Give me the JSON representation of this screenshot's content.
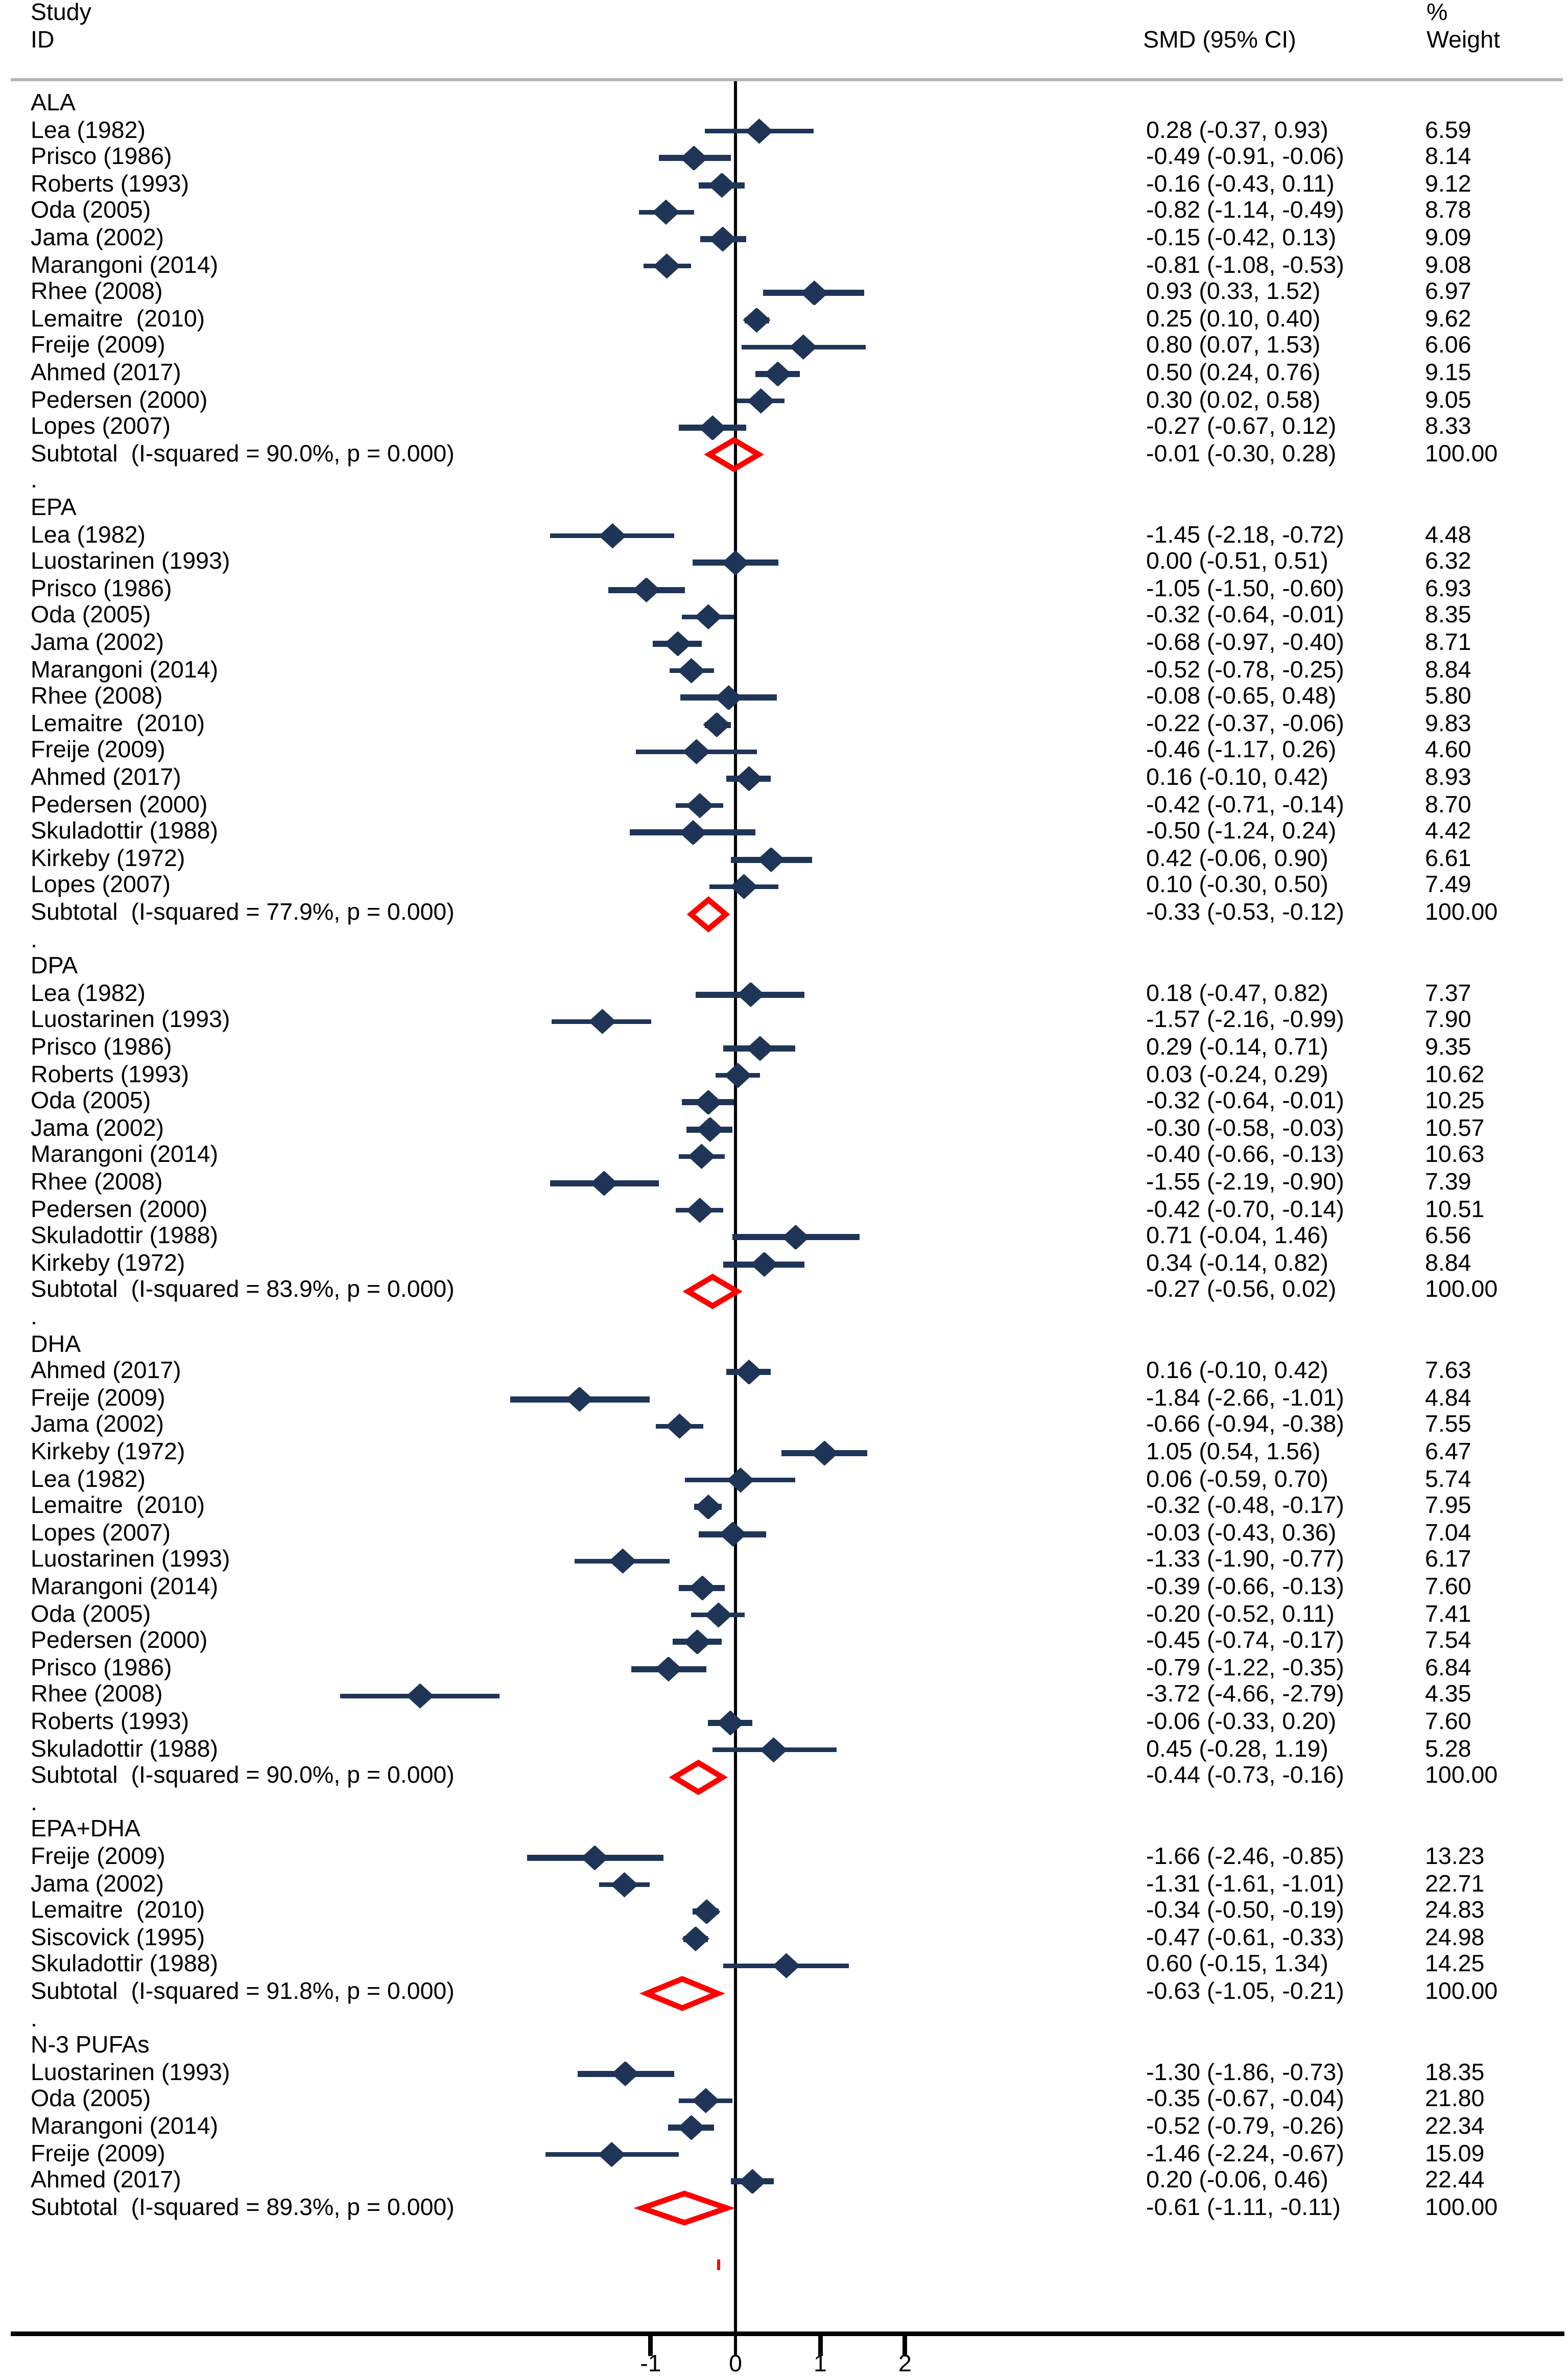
{
  "header": {
    "study_col_line1": "Study",
    "study_col_line2": "ID",
    "smd_col": "SMD (95% CI)",
    "weight_col_line1": "%",
    "weight_col_line2": "Weight"
  },
  "separator_dot": ".",
  "colors": {
    "marker_navy": "#1f3557",
    "subtotal_red": "#fe0000",
    "axis_black": "#000000",
    "header_rule_gray": "#b5b5b5",
    "text": "#000000"
  },
  "axis": {
    "tick_labels": [
      "-1",
      "0",
      "1",
      "2"
    ],
    "tick_values": [
      -1,
      0,
      1,
      2
    ]
  },
  "chart_data": {
    "type": "forest",
    "effect_measure": "SMD",
    "xlim": [
      -4.9,
      2.6
    ],
    "x_ticks": [
      -1,
      0,
      1,
      2
    ],
    "grid": false,
    "null_line": 0,
    "groups": [
      {
        "name": "ALA",
        "dot_after": true,
        "studies": [
          {
            "label": "Lea (1982)",
            "smd": 0.28,
            "lo": -0.37,
            "hi": 0.93,
            "smd_text": "0.28 (-0.37, 0.93)",
            "weight": "6.59"
          },
          {
            "label": "Prisco (1986)",
            "smd": -0.49,
            "lo": -0.91,
            "hi": -0.06,
            "smd_text": "-0.49 (-0.91, -0.06)",
            "weight": "8.14"
          },
          {
            "label": "Roberts (1993)",
            "smd": -0.16,
            "lo": -0.43,
            "hi": 0.11,
            "smd_text": "-0.16 (-0.43, 0.11)",
            "weight": "9.12"
          },
          {
            "label": "Oda (2005)",
            "smd": -0.82,
            "lo": -1.14,
            "hi": -0.49,
            "smd_text": "-0.82 (-1.14, -0.49)",
            "weight": "8.78"
          },
          {
            "label": "Jama (2002)",
            "smd": -0.15,
            "lo": -0.42,
            "hi": 0.13,
            "smd_text": "-0.15 (-0.42, 0.13)",
            "weight": "9.09"
          },
          {
            "label": "Marangoni (2014)",
            "smd": -0.81,
            "lo": -1.08,
            "hi": -0.53,
            "smd_text": "-0.81 (-1.08, -0.53)",
            "weight": "9.08"
          },
          {
            "label": "Rhee (2008)",
            "smd": 0.93,
            "lo": 0.33,
            "hi": 1.52,
            "smd_text": "0.93 (0.33, 1.52)",
            "weight": "6.97"
          },
          {
            "label": "Lemaitre  (2010)",
            "smd": 0.25,
            "lo": 0.1,
            "hi": 0.4,
            "smd_text": "0.25 (0.10, 0.40)",
            "weight": "9.62"
          },
          {
            "label": "Freije (2009)",
            "smd": 0.8,
            "lo": 0.07,
            "hi": 1.53,
            "smd_text": "0.80 (0.07, 1.53)",
            "weight": "6.06"
          },
          {
            "label": "Ahmed (2017)",
            "smd": 0.5,
            "lo": 0.24,
            "hi": 0.76,
            "smd_text": "0.50 (0.24, 0.76)",
            "weight": "9.15"
          },
          {
            "label": "Pedersen (2000)",
            "smd": 0.3,
            "lo": 0.02,
            "hi": 0.58,
            "smd_text": "0.30 (0.02, 0.58)",
            "weight": "9.05"
          },
          {
            "label": "Lopes (2007)",
            "smd": -0.27,
            "lo": -0.67,
            "hi": 0.12,
            "smd_text": "-0.27 (-0.67, 0.12)",
            "weight": "8.33"
          }
        ],
        "subtotal": {
          "label": "Subtotal  (I-squared = 90.0%, p = 0.000)",
          "smd": -0.01,
          "lo": -0.3,
          "hi": 0.28,
          "smd_text": "-0.01 (-0.30, 0.28)",
          "weight": "100.00"
        }
      },
      {
        "name": "EPA",
        "dot_after": true,
        "studies": [
          {
            "label": "Lea (1982)",
            "smd": -1.45,
            "lo": -2.18,
            "hi": -0.72,
            "smd_text": "-1.45 (-2.18, -0.72)",
            "weight": "4.48"
          },
          {
            "label": "Luostarinen (1993)",
            "smd": 0.0,
            "lo": -0.51,
            "hi": 0.51,
            "smd_text": "0.00 (-0.51, 0.51)",
            "weight": "6.32"
          },
          {
            "label": "Prisco (1986)",
            "smd": -1.05,
            "lo": -1.5,
            "hi": -0.6,
            "smd_text": "-1.05 (-1.50, -0.60)",
            "weight": "6.93"
          },
          {
            "label": "Oda (2005)",
            "smd": -0.32,
            "lo": -0.64,
            "hi": -0.01,
            "smd_text": "-0.32 (-0.64, -0.01)",
            "weight": "8.35"
          },
          {
            "label": "Jama (2002)",
            "smd": -0.68,
            "lo": -0.97,
            "hi": -0.4,
            "smd_text": "-0.68 (-0.97, -0.40)",
            "weight": "8.71"
          },
          {
            "label": "Marangoni (2014)",
            "smd": -0.52,
            "lo": -0.78,
            "hi": -0.25,
            "smd_text": "-0.52 (-0.78, -0.25)",
            "weight": "8.84"
          },
          {
            "label": "Rhee (2008)",
            "smd": -0.08,
            "lo": -0.65,
            "hi": 0.48,
            "smd_text": "-0.08 (-0.65, 0.48)",
            "weight": "5.80"
          },
          {
            "label": "Lemaitre  (2010)",
            "smd": -0.22,
            "lo": -0.37,
            "hi": -0.06,
            "smd_text": "-0.22 (-0.37, -0.06)",
            "weight": "9.83"
          },
          {
            "label": "Freije (2009)",
            "smd": -0.46,
            "lo": -1.17,
            "hi": 0.26,
            "smd_text": "-0.46 (-1.17, 0.26)",
            "weight": "4.60"
          },
          {
            "label": "Ahmed (2017)",
            "smd": 0.16,
            "lo": -0.1,
            "hi": 0.42,
            "smd_text": "0.16 (-0.10, 0.42)",
            "weight": "8.93"
          },
          {
            "label": "Pedersen (2000)",
            "smd": -0.42,
            "lo": -0.71,
            "hi": -0.14,
            "smd_text": "-0.42 (-0.71, -0.14)",
            "weight": "8.70"
          },
          {
            "label": "Skuladottir (1988)",
            "smd": -0.5,
            "lo": -1.24,
            "hi": 0.24,
            "smd_text": "-0.50 (-1.24, 0.24)",
            "weight": "4.42"
          },
          {
            "label": "Kirkeby (1972)",
            "smd": 0.42,
            "lo": -0.06,
            "hi": 0.9,
            "smd_text": "0.42 (-0.06, 0.90)",
            "weight": "6.61"
          },
          {
            "label": "Lopes (2007)",
            "smd": 0.1,
            "lo": -0.3,
            "hi": 0.5,
            "smd_text": "0.10 (-0.30, 0.50)",
            "weight": "7.49"
          }
        ],
        "subtotal": {
          "label": "Subtotal  (I-squared = 77.9%, p = 0.000)",
          "smd": -0.33,
          "lo": -0.53,
          "hi": -0.12,
          "smd_text": "-0.33 (-0.53, -0.12)",
          "weight": "100.00"
        }
      },
      {
        "name": "DPA",
        "dot_after": true,
        "studies": [
          {
            "label": "Lea (1982)",
            "smd": 0.18,
            "lo": -0.47,
            "hi": 0.82,
            "smd_text": "0.18 (-0.47, 0.82)",
            "weight": "7.37"
          },
          {
            "label": "Luostarinen (1993)",
            "smd": -1.57,
            "lo": -2.16,
            "hi": -0.99,
            "smd_text": "-1.57 (-2.16, -0.99)",
            "weight": "7.90"
          },
          {
            "label": "Prisco (1986)",
            "smd": 0.29,
            "lo": -0.14,
            "hi": 0.71,
            "smd_text": "0.29 (-0.14, 0.71)",
            "weight": "9.35"
          },
          {
            "label": "Roberts (1993)",
            "smd": 0.03,
            "lo": -0.24,
            "hi": 0.29,
            "smd_text": "0.03 (-0.24, 0.29)",
            "weight": "10.62"
          },
          {
            "label": "Oda (2005)",
            "smd": -0.32,
            "lo": -0.64,
            "hi": -0.01,
            "smd_text": "-0.32 (-0.64, -0.01)",
            "weight": "10.25"
          },
          {
            "label": "Jama (2002)",
            "smd": -0.3,
            "lo": -0.58,
            "hi": -0.03,
            "smd_text": "-0.30 (-0.58, -0.03)",
            "weight": "10.57"
          },
          {
            "label": "Marangoni (2014)",
            "smd": -0.4,
            "lo": -0.66,
            "hi": -0.13,
            "smd_text": "-0.40 (-0.66, -0.13)",
            "weight": "10.63"
          },
          {
            "label": "Rhee (2008)",
            "smd": -1.55,
            "lo": -2.19,
            "hi": -0.9,
            "smd_text": "-1.55 (-2.19, -0.90)",
            "weight": "7.39"
          },
          {
            "label": "Pedersen (2000)",
            "smd": -0.42,
            "lo": -0.7,
            "hi": -0.14,
            "smd_text": "-0.42 (-0.70, -0.14)",
            "weight": "10.51"
          },
          {
            "label": "Skuladottir (1988)",
            "smd": 0.71,
            "lo": -0.04,
            "hi": 1.46,
            "smd_text": "0.71 (-0.04, 1.46)",
            "weight": "6.56"
          },
          {
            "label": "Kirkeby (1972)",
            "smd": 0.34,
            "lo": -0.14,
            "hi": 0.82,
            "smd_text": "0.34 (-0.14, 0.82)",
            "weight": "8.84"
          }
        ],
        "subtotal": {
          "label": "Subtotal  (I-squared = 83.9%, p = 0.000)",
          "smd": -0.27,
          "lo": -0.56,
          "hi": 0.02,
          "smd_text": "-0.27 (-0.56, 0.02)",
          "weight": "100.00"
        }
      },
      {
        "name": "DHA",
        "dot_after": true,
        "studies": [
          {
            "label": "Ahmed (2017)",
            "smd": 0.16,
            "lo": -0.1,
            "hi": 0.42,
            "smd_text": "0.16 (-0.10, 0.42)",
            "weight": "7.63"
          },
          {
            "label": "Freije (2009)",
            "smd": -1.84,
            "lo": -2.66,
            "hi": -1.01,
            "smd_text": "-1.84 (-2.66, -1.01)",
            "weight": "4.84"
          },
          {
            "label": "Jama (2002)",
            "smd": -0.66,
            "lo": -0.94,
            "hi": -0.38,
            "smd_text": "-0.66 (-0.94, -0.38)",
            "weight": "7.55"
          },
          {
            "label": "Kirkeby (1972)",
            "smd": 1.05,
            "lo": 0.54,
            "hi": 1.56,
            "smd_text": "1.05 (0.54, 1.56)",
            "weight": "6.47"
          },
          {
            "label": "Lea (1982)",
            "smd": 0.06,
            "lo": -0.59,
            "hi": 0.7,
            "smd_text": "0.06 (-0.59, 0.70)",
            "weight": "5.74"
          },
          {
            "label": "Lemaitre  (2010)",
            "smd": -0.32,
            "lo": -0.48,
            "hi": -0.17,
            "smd_text": "-0.32 (-0.48, -0.17)",
            "weight": "7.95"
          },
          {
            "label": "Lopes (2007)",
            "smd": -0.03,
            "lo": -0.43,
            "hi": 0.36,
            "smd_text": "-0.03 (-0.43, 0.36)",
            "weight": "7.04"
          },
          {
            "label": "Luostarinen (1993)",
            "smd": -1.33,
            "lo": -1.9,
            "hi": -0.77,
            "smd_text": "-1.33 (-1.90, -0.77)",
            "weight": "6.17"
          },
          {
            "label": "Marangoni (2014)",
            "smd": -0.39,
            "lo": -0.66,
            "hi": -0.13,
            "smd_text": "-0.39 (-0.66, -0.13)",
            "weight": "7.60"
          },
          {
            "label": "Oda (2005)",
            "smd": -0.2,
            "lo": -0.52,
            "hi": 0.11,
            "smd_text": "-0.20 (-0.52, 0.11)",
            "weight": "7.41"
          },
          {
            "label": "Pedersen (2000)",
            "smd": -0.45,
            "lo": -0.74,
            "hi": -0.17,
            "smd_text": "-0.45 (-0.74, -0.17)",
            "weight": "7.54"
          },
          {
            "label": "Prisco (1986)",
            "smd": -0.79,
            "lo": -1.22,
            "hi": -0.35,
            "smd_text": "-0.79 (-1.22, -0.35)",
            "weight": "6.84"
          },
          {
            "label": "Rhee (2008)",
            "smd": -3.72,
            "lo": -4.66,
            "hi": -2.79,
            "smd_text": "-3.72 (-4.66, -2.79)",
            "weight": "4.35"
          },
          {
            "label": "Roberts (1993)",
            "smd": -0.06,
            "lo": -0.33,
            "hi": 0.2,
            "smd_text": "-0.06 (-0.33, 0.20)",
            "weight": "7.60"
          },
          {
            "label": "Skuladottir (1988)",
            "smd": 0.45,
            "lo": -0.28,
            "hi": 1.19,
            "smd_text": "0.45 (-0.28, 1.19)",
            "weight": "5.28"
          }
        ],
        "subtotal": {
          "label": "Subtotal  (I-squared = 90.0%, p = 0.000)",
          "smd": -0.44,
          "lo": -0.73,
          "hi": -0.16,
          "smd_text": "-0.44 (-0.73, -0.16)",
          "weight": "100.00"
        }
      },
      {
        "name": "EPA+DHA",
        "dot_after": true,
        "studies": [
          {
            "label": "Freije (2009)",
            "smd": -1.66,
            "lo": -2.46,
            "hi": -0.85,
            "smd_text": "-1.66 (-2.46, -0.85)",
            "weight": "13.23"
          },
          {
            "label": "Jama (2002)",
            "smd": -1.31,
            "lo": -1.61,
            "hi": -1.01,
            "smd_text": "-1.31 (-1.61, -1.01)",
            "weight": "22.71"
          },
          {
            "label": "Lemaitre  (2010)",
            "smd": -0.34,
            "lo": -0.5,
            "hi": -0.19,
            "smd_text": "-0.34 (-0.50, -0.19)",
            "weight": "24.83"
          },
          {
            "label": "Siscovick (1995)",
            "smd": -0.47,
            "lo": -0.61,
            "hi": -0.33,
            "smd_text": "-0.47 (-0.61, -0.33)",
            "weight": "24.98"
          },
          {
            "label": "Skuladottir (1988)",
            "smd": 0.6,
            "lo": -0.15,
            "hi": 1.34,
            "smd_text": "0.60 (-0.15, 1.34)",
            "weight": "14.25"
          }
        ],
        "subtotal": {
          "label": "Subtotal  (I-squared = 91.8%, p = 0.000)",
          "smd": -0.63,
          "lo": -1.05,
          "hi": -0.21,
          "smd_text": "-0.63 (-1.05, -0.21)",
          "weight": "100.00"
        }
      },
      {
        "name": "N-3 PUFAs",
        "dot_after": false,
        "studies": [
          {
            "label": "Luostarinen (1993)",
            "smd": -1.3,
            "lo": -1.86,
            "hi": -0.73,
            "smd_text": "-1.30 (-1.86, -0.73)",
            "weight": "18.35"
          },
          {
            "label": "Oda (2005)",
            "smd": -0.35,
            "lo": -0.67,
            "hi": -0.04,
            "smd_text": "-0.35 (-0.67, -0.04)",
            "weight": "21.80"
          },
          {
            "label": "Marangoni (2014)",
            "smd": -0.52,
            "lo": -0.79,
            "hi": -0.26,
            "smd_text": "-0.52 (-0.79, -0.26)",
            "weight": "22.34"
          },
          {
            "label": "Freije (2009)",
            "smd": -1.46,
            "lo": -2.24,
            "hi": -0.67,
            "smd_text": "-1.46 (-2.24, -0.67)",
            "weight": "15.09"
          },
          {
            "label": "Ahmed (2017)",
            "smd": 0.2,
            "lo": -0.06,
            "hi": 0.46,
            "smd_text": "0.20 (-0.06, 0.46)",
            "weight": "22.44"
          }
        ],
        "subtotal": {
          "label": "Subtotal  (I-squared = 89.3%, p = 0.000)",
          "smd": -0.61,
          "lo": -1.11,
          "hi": -0.11,
          "smd_text": "-0.61 (-1.11, -0.11)",
          "weight": "100.00"
        }
      }
    ]
  }
}
